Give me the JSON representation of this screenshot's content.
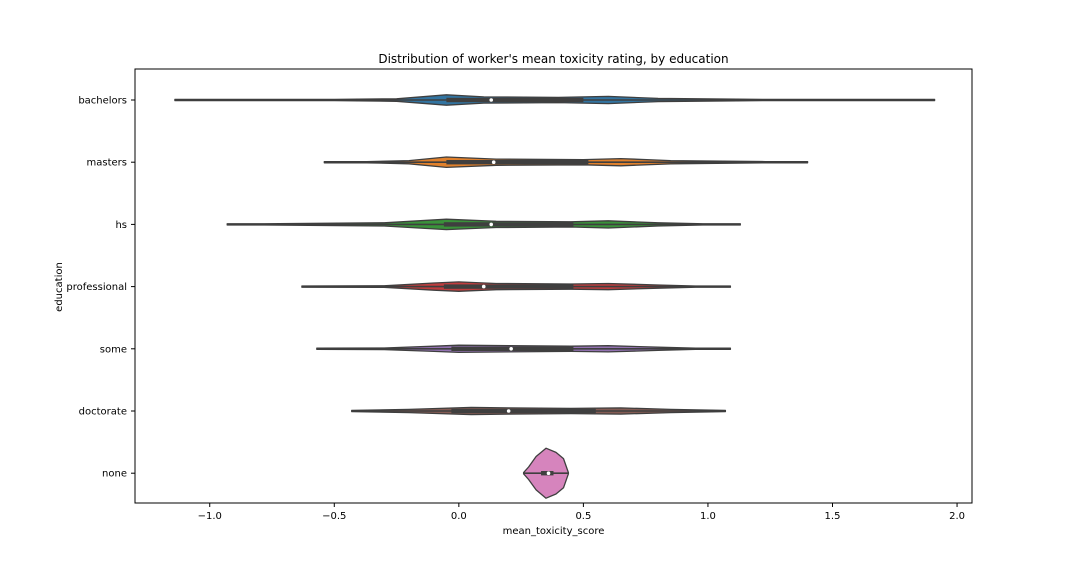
{
  "chart_data": {
    "type": "violin",
    "title": "Distribution of worker's mean toxicity rating, by education",
    "xlabel": "mean_toxicity_score",
    "ylabel": "education",
    "xlim": [
      -1.3,
      2.06
    ],
    "xticks": [
      -1.0,
      -0.5,
      0.0,
      0.5,
      1.0,
      1.5,
      2.0
    ],
    "xtick_labels": [
      "−1.0",
      "−0.5",
      "0.0",
      "0.5",
      "1.0",
      "1.5",
      "2.0"
    ],
    "categories": [
      "bachelors",
      "masters",
      "hs",
      "professional",
      "some",
      "doctorate",
      "none"
    ],
    "grid": false,
    "legend": "none",
    "series": [
      {
        "category": "bachelors",
        "color": "#3274a1",
        "min": -1.14,
        "q1": -0.05,
        "median": 0.13,
        "q3": 0.5,
        "max": 1.91,
        "density": [
          [
            -1.14,
            0.2
          ],
          [
            -0.5,
            0.6
          ],
          [
            -0.25,
            1.2
          ],
          [
            -0.05,
            5
          ],
          [
            0.1,
            3
          ],
          [
            0.4,
            2.5
          ],
          [
            0.6,
            3.5
          ],
          [
            0.8,
            1.5
          ],
          [
            1.23,
            0.6
          ],
          [
            1.91,
            0.2
          ]
        ]
      },
      {
        "category": "masters",
        "color": "#e1812c",
        "min": -0.54,
        "q1": -0.05,
        "median": 0.14,
        "q3": 0.52,
        "max": 1.4,
        "density": [
          [
            -0.54,
            0.2
          ],
          [
            -0.37,
            0.6
          ],
          [
            -0.2,
            1.5
          ],
          [
            -0.05,
            5
          ],
          [
            0.15,
            3
          ],
          [
            0.5,
            2.5
          ],
          [
            0.65,
            3.5
          ],
          [
            0.85,
            1.5
          ],
          [
            1.23,
            0.6
          ],
          [
            1.4,
            0.2
          ]
        ]
      },
      {
        "category": "hs",
        "color": "#3a923a",
        "min": -0.93,
        "q1": -0.06,
        "median": 0.13,
        "q3": 0.46,
        "max": 1.13,
        "density": [
          [
            -0.93,
            0.2
          ],
          [
            -0.78,
            0.6
          ],
          [
            -0.3,
            1.5
          ],
          [
            -0.05,
            5
          ],
          [
            0.15,
            3
          ],
          [
            0.45,
            2.5
          ],
          [
            0.6,
            3.5
          ],
          [
            0.8,
            1.5
          ],
          [
            0.98,
            0.6
          ],
          [
            1.13,
            0.2
          ]
        ]
      },
      {
        "category": "professional",
        "color": "#c03d3e",
        "min": -0.63,
        "q1": -0.06,
        "median": 0.1,
        "q3": 0.46,
        "max": 1.09,
        "density": [
          [
            -0.63,
            0.2
          ],
          [
            -0.3,
            0.8
          ],
          [
            -0.1,
            3.5
          ],
          [
            0.0,
            4.5
          ],
          [
            0.15,
            3
          ],
          [
            0.45,
            2.5
          ],
          [
            0.6,
            3
          ],
          [
            0.8,
            1.5
          ],
          [
            0.95,
            0.6
          ],
          [
            1.09,
            0.2
          ]
        ]
      },
      {
        "category": "some",
        "color": "#9372b2",
        "min": -0.57,
        "q1": -0.03,
        "median": 0.21,
        "q3": 0.46,
        "max": 1.09,
        "density": [
          [
            -0.57,
            0.2
          ],
          [
            -0.3,
            0.8
          ],
          [
            -0.1,
            2.5
          ],
          [
            0.0,
            3.5
          ],
          [
            0.2,
            3
          ],
          [
            0.45,
            2.5
          ],
          [
            0.6,
            3
          ],
          [
            0.8,
            1.5
          ],
          [
            0.95,
            0.6
          ],
          [
            1.09,
            0.2
          ]
        ]
      },
      {
        "category": "doctorate",
        "color": "#845b53",
        "min": -0.43,
        "q1": -0.03,
        "median": 0.2,
        "q3": 0.55,
        "max": 1.07,
        "density": [
          [
            -0.43,
            0.3
          ],
          [
            -0.2,
            1.5
          ],
          [
            0.05,
            3.5
          ],
          [
            0.2,
            3
          ],
          [
            0.45,
            2.5
          ],
          [
            0.65,
            3
          ],
          [
            0.85,
            1.5
          ],
          [
            1.07,
            0.3
          ]
        ]
      },
      {
        "category": "none",
        "color": "#d684bd",
        "min": 0.26,
        "q1": 0.33,
        "median": 0.36,
        "q3": 0.38,
        "max": 0.44,
        "density": [
          [
            0.26,
            0.1
          ],
          [
            0.28,
            6
          ],
          [
            0.31,
            16
          ],
          [
            0.35,
            24
          ],
          [
            0.39,
            20
          ],
          [
            0.42,
            14
          ],
          [
            0.44,
            0.1
          ]
        ]
      }
    ]
  }
}
